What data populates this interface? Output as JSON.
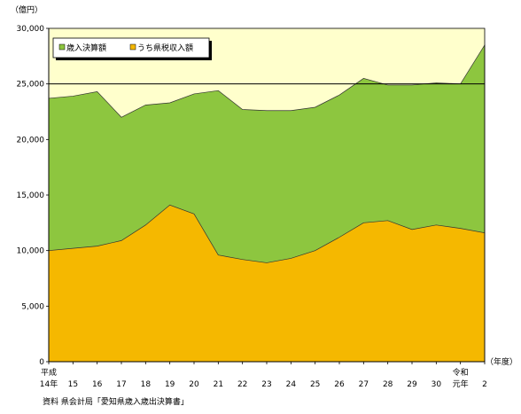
{
  "chart_data": {
    "type": "area",
    "y_unit_label": "（億円）",
    "x_unit_label": "（年度）",
    "ylim": [
      0,
      30000
    ],
    "ytick_values": [
      0,
      5000,
      10000,
      15000,
      20000,
      25000,
      30000
    ],
    "ytick_labels": [
      "0",
      "5,000",
      "10,000",
      "15,000",
      "20,000",
      "25,000",
      "30,000"
    ],
    "categories": [
      {
        "line1": "平成",
        "line2": "14年"
      },
      {
        "line1": "",
        "line2": "15"
      },
      {
        "line1": "",
        "line2": "16"
      },
      {
        "line1": "",
        "line2": "17"
      },
      {
        "line1": "",
        "line2": "18"
      },
      {
        "line1": "",
        "line2": "19"
      },
      {
        "line1": "",
        "line2": "20"
      },
      {
        "line1": "",
        "line2": "21"
      },
      {
        "line1": "",
        "line2": "22"
      },
      {
        "line1": "",
        "line2": "23"
      },
      {
        "line1": "",
        "line2": "24"
      },
      {
        "line1": "",
        "line2": "25"
      },
      {
        "line1": "",
        "line2": "26"
      },
      {
        "line1": "",
        "line2": "27"
      },
      {
        "line1": "",
        "line2": "28"
      },
      {
        "line1": "",
        "line2": "29"
      },
      {
        "line1": "",
        "line2": "30"
      },
      {
        "line1": "令和",
        "line2": "元年"
      },
      {
        "line1": "",
        "line2": "2"
      }
    ],
    "reference_line_value": 25000,
    "series": [
      {
        "name": "歳入決算額",
        "color": "#8DC63F",
        "values": [
          23700,
          23900,
          24300,
          22000,
          23100,
          23300,
          24100,
          24400,
          22700,
          22600,
          22600,
          22900,
          24000,
          25500,
          24900,
          24900,
          25100,
          25000,
          28500
        ]
      },
      {
        "name": "うち県税収入額",
        "color": "#F5B800",
        "values": [
          10000,
          10200,
          10400,
          10900,
          12300,
          14100,
          13300,
          9600,
          9200,
          8900,
          9300,
          10000,
          11200,
          12500,
          12700,
          11900,
          12300,
          12000,
          11600
        ]
      }
    ],
    "plot_background": "#FFFFCC",
    "legend_position": "top-left",
    "source_note": "資料  県会計局「愛知県歳入歳出決算書」"
  }
}
